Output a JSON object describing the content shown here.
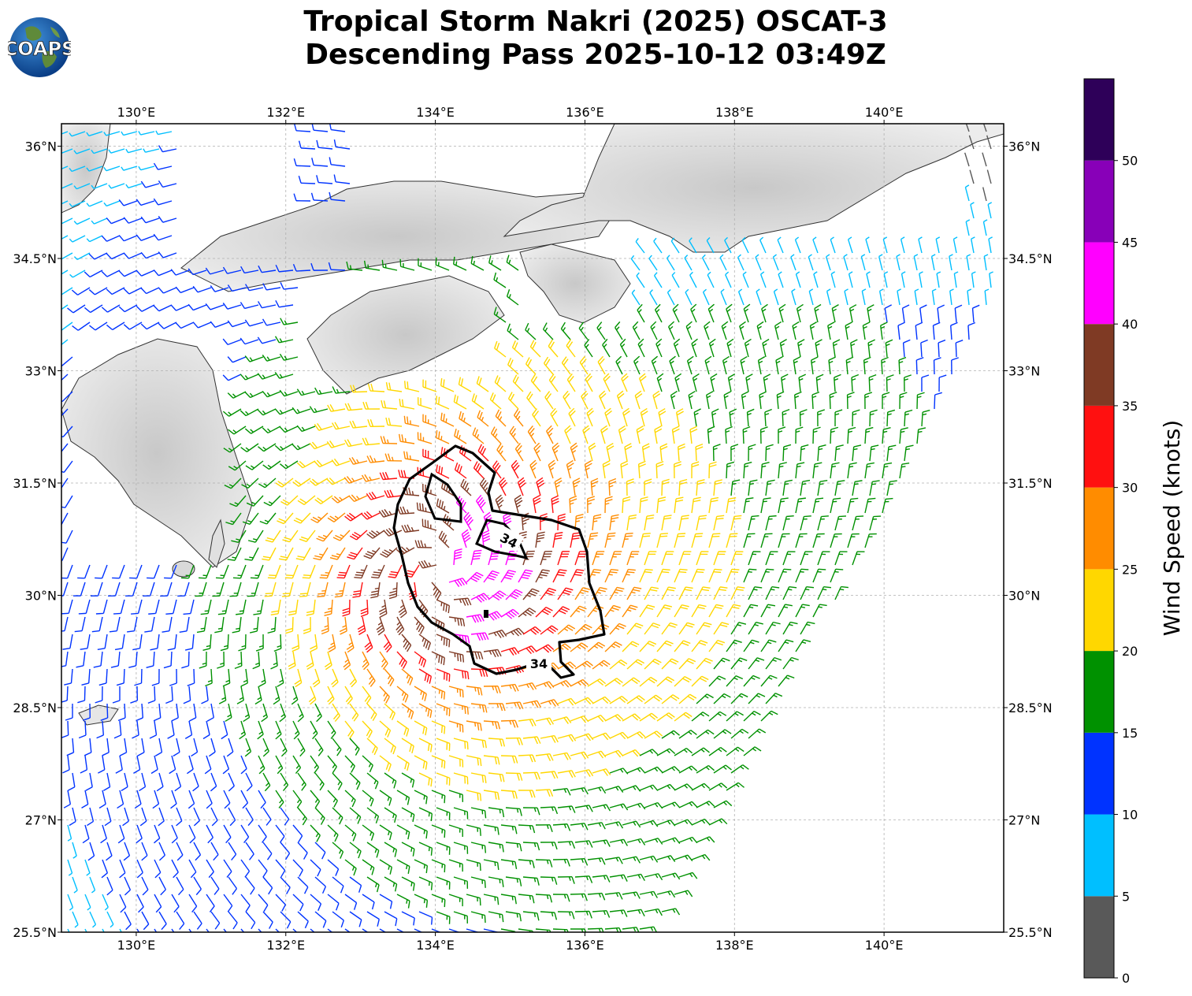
{
  "title": {
    "line1": "Tropical Storm Nakri (2025) OSCAT-3",
    "line2": "Descending Pass 2025-10-12 03:49Z"
  },
  "logo": {
    "text": "COAPS"
  },
  "map": {
    "lon_range": [
      129.0,
      141.6
    ],
    "lat_range": [
      25.5,
      36.3
    ],
    "lon_ticks": [
      "130°E",
      "132°E",
      "134°E",
      "136°E",
      "138°E",
      "140°E"
    ],
    "lon_tick_values": [
      130,
      132,
      134,
      136,
      138,
      140
    ],
    "lat_ticks": [
      "36°N",
      "34.5°N",
      "33°N",
      "31.5°N",
      "30°N",
      "28.5°N",
      "27°N",
      "25.5°N"
    ],
    "lat_tick_values": [
      36,
      34.5,
      33,
      31.5,
      30,
      28.5,
      27,
      25.5
    ],
    "storm_center": {
      "lon": 134.05,
      "lat": 30.35
    },
    "contour_labels": [
      "34",
      "34"
    ],
    "contour_value": "34"
  },
  "colorbar": {
    "label": "Wind Speed (knots)",
    "ticks": [
      "0",
      "5",
      "10",
      "15",
      "20",
      "25",
      "30",
      "35",
      "40",
      "45",
      "50"
    ],
    "bins": [
      {
        "min": 0,
        "max": 5,
        "color": "#595959"
      },
      {
        "min": 5,
        "max": 10,
        "color": "#00bfff"
      },
      {
        "min": 10,
        "max": 15,
        "color": "#0033ff"
      },
      {
        "min": 15,
        "max": 20,
        "color": "#009100"
      },
      {
        "min": 20,
        "max": 25,
        "color": "#ffd700"
      },
      {
        "min": 25,
        "max": 30,
        "color": "#ff8c00"
      },
      {
        "min": 30,
        "max": 35,
        "color": "#ff1010"
      },
      {
        "min": 35,
        "max": 40,
        "color": "#7f3a24"
      },
      {
        "min": 40,
        "max": 45,
        "color": "#ff00ff"
      },
      {
        "min": 45,
        "max": 50,
        "color": "#8800b8"
      },
      {
        "min": 50,
        "max": 55,
        "color": "#2e0059"
      }
    ]
  }
}
